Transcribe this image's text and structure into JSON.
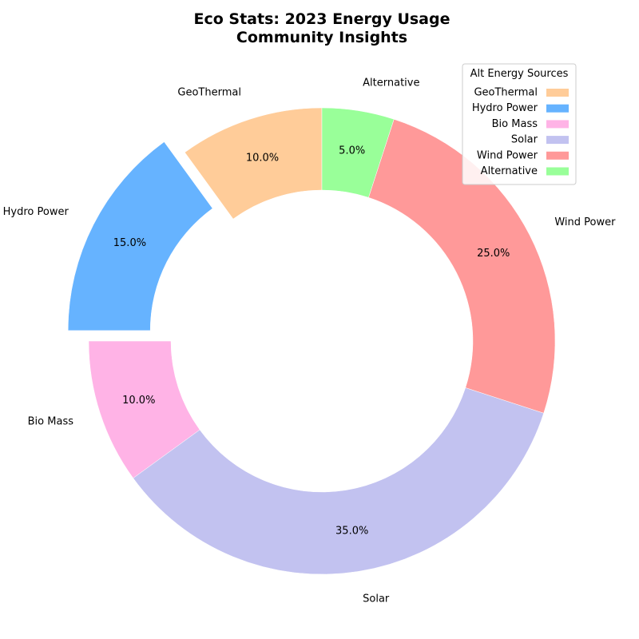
{
  "chart_data": {
    "type": "pie",
    "title_lines": [
      "Eco Stats: 2023 Energy Usage",
      "Community Insights"
    ],
    "donut": true,
    "start_angle_deg": 90,
    "direction": "clockwise",
    "slices": [
      {
        "label": "GeoThermal",
        "value": 10,
        "pct_label": "10.0%",
        "color": "#ffcc99",
        "exploded": false
      },
      {
        "label": "Hydro Power",
        "value": 15,
        "pct_label": "15.0%",
        "color": "#66b3ff",
        "exploded": true
      },
      {
        "label": "Bio Mass",
        "value": 10,
        "pct_label": "10.0%",
        "color": "#ffb3e6",
        "exploded": false
      },
      {
        "label": "Solar",
        "value": 35,
        "pct_label": "35.0%",
        "color": "#c2c2f0",
        "exploded": false
      },
      {
        "label": "Wind Power",
        "value": 25,
        "pct_label": "25.0%",
        "color": "#ff9999",
        "exploded": false
      },
      {
        "label": "Alternative",
        "value": 5,
        "pct_label": "5.0%",
        "color": "#99ff99",
        "exploded": false
      }
    ],
    "legend": {
      "title": "Alt Energy Sources",
      "placement": "top-right",
      "entries": [
        "GeoThermal",
        "Hydro Power",
        "Bio Mass",
        "Solar",
        "Wind Power",
        "Alternative"
      ]
    }
  }
}
